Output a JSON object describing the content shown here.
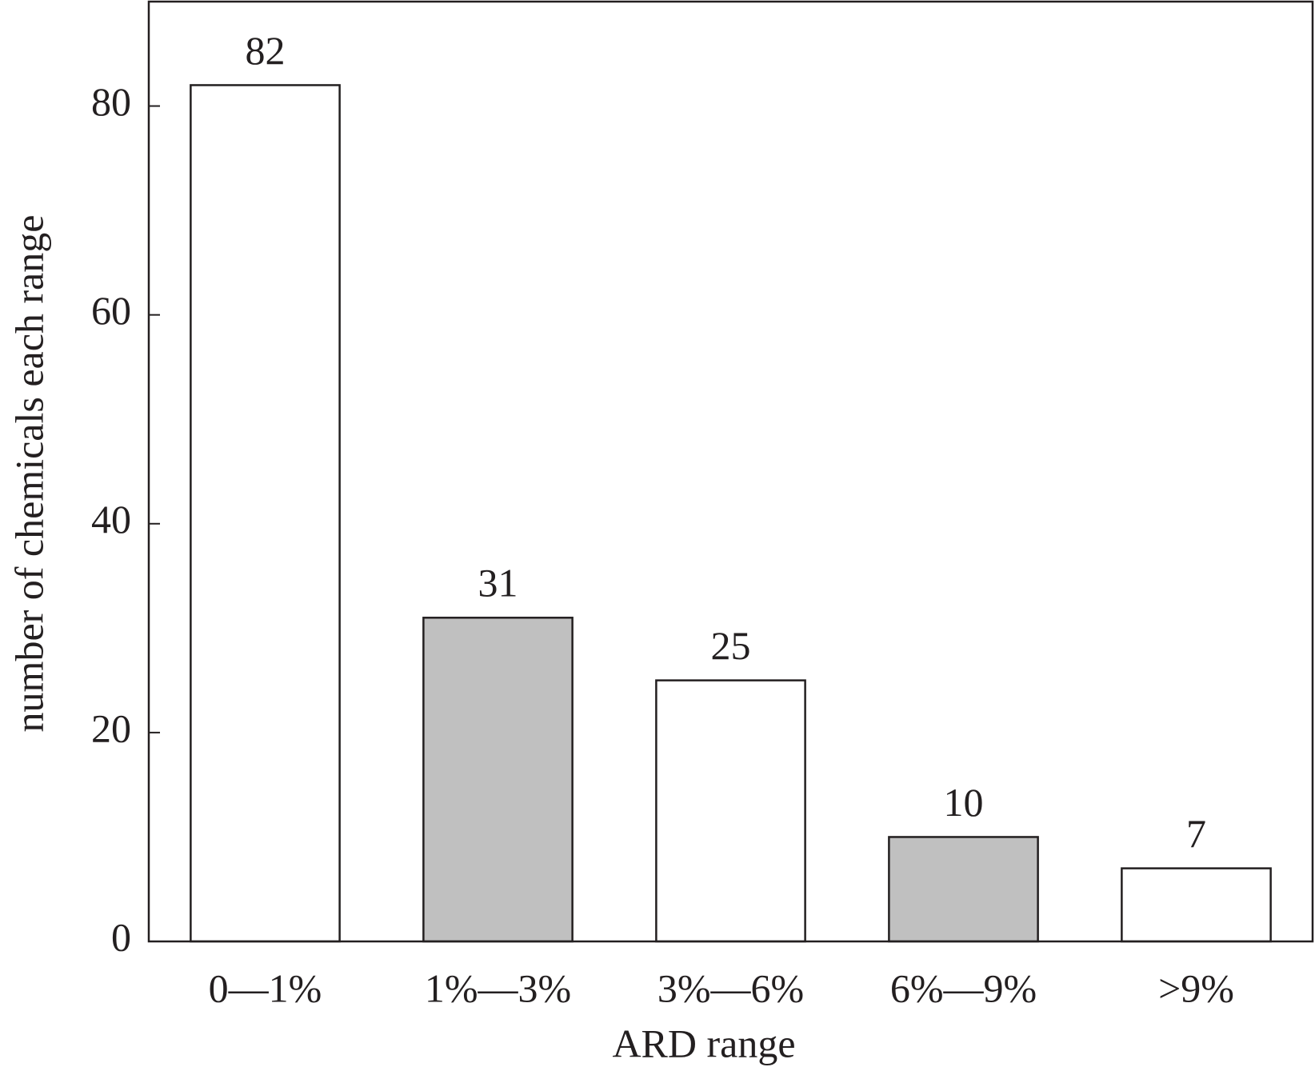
{
  "chart_data": {
    "type": "bar",
    "x_label": "ARD range",
    "y_label": "number of chemicals each range",
    "categories": [
      "0—1%",
      "1%—3%",
      "3%—6%",
      "6%—9%",
      ">9%"
    ],
    "values": [
      82,
      31,
      25,
      10,
      7
    ],
    "colors": [
      "#ffffff",
      "#c0c0c0",
      "#ffffff",
      "#c0c0c0",
      "#ffffff"
    ],
    "ylim": [
      0,
      90
    ],
    "yticks": [
      0,
      20,
      40,
      60,
      80
    ],
    "grid": false
  }
}
